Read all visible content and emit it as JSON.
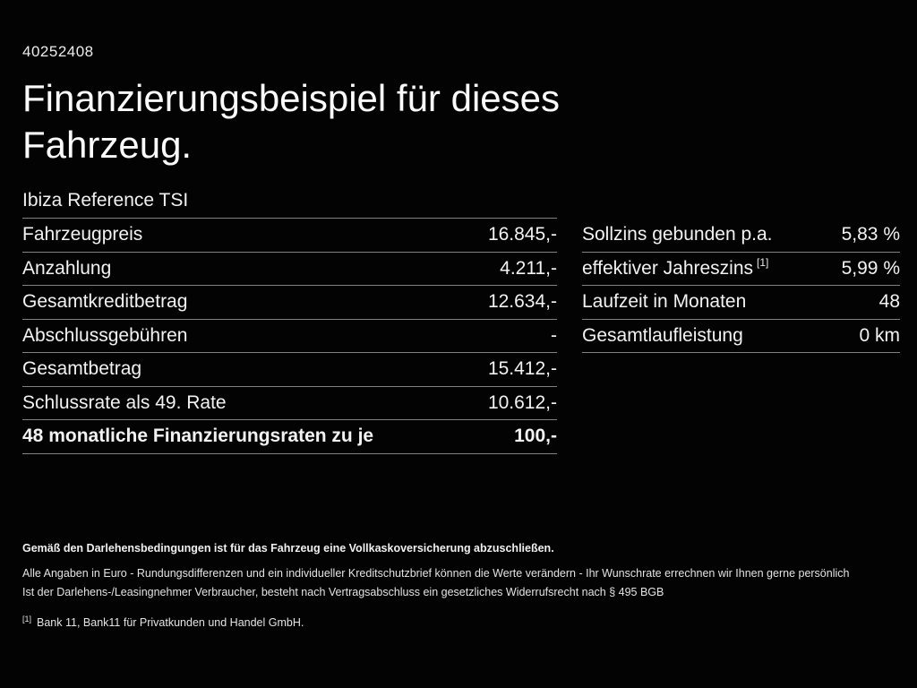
{
  "page": {
    "vehicle_id": "40252408",
    "title_line1": "Finanzierungsbeispiel für dieses",
    "title_line2": "Fahrzeug.",
    "model": "Ibiza Reference TSI"
  },
  "left_table": {
    "rows": [
      {
        "label": "Fahrzeugpreis",
        "value": "16.845,-"
      },
      {
        "label": "Anzahlung",
        "value": "4.211,-"
      },
      {
        "label": "Gesamtkreditbetrag",
        "value": "12.634,-"
      },
      {
        "label": "Abschlussgebühren",
        "value": "-"
      },
      {
        "label": "Gesamtbetrag",
        "value": "15.412,-"
      },
      {
        "label": "Schlussrate als 49. Rate",
        "value": "10.612,-"
      },
      {
        "label": "48 monatliche Finanzierungsraten zu je",
        "value": "100,-"
      }
    ]
  },
  "right_table": {
    "rows": [
      {
        "label": "Sollzins gebunden p.a.",
        "value": "5,83 %"
      },
      {
        "label": "effektiver Jahreszins",
        "sup": "[1]",
        "value": "5,99 %"
      },
      {
        "label": "Laufzeit in Monaten",
        "value": "48"
      },
      {
        "label": "Gesamtlaufleistung",
        "value": "0 km"
      }
    ]
  },
  "footer": {
    "line1": "Gemäß den Darlehensbedingungen ist für das Fahrzeug eine Vollkaskoversicherung abzuschließen.",
    "line2": "Alle Angaben in Euro - Rundungsdifferenzen und ein individueller Kreditschutzbrief können die Werte verändern - Ihr Wunschrate errechnen wir Ihnen gerne persönlich",
    "line3": "Ist der Darlehens-/Leasingnehmer Verbraucher, besteht nach Vertragsabschluss ein gesetzliches Widerrufsrecht nach § 495 BGB",
    "footnote_marker": "[1]",
    "footnote_text": "Bank 11, Bank11 für Privatkunden und Handel GmbH."
  },
  "colors": {
    "background": "#030303",
    "text": "#f2f2f2",
    "divider": "#828282"
  }
}
